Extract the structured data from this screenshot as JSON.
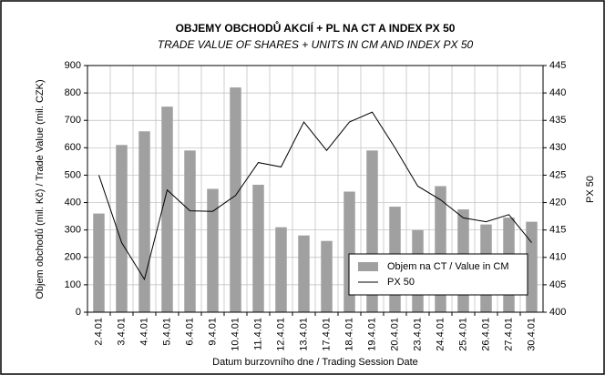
{
  "chart_data": {
    "type": "bar_line",
    "title": "OBJEMY OBCHODŮ AKCIÍ + PL NA CT A INDEX PX 50",
    "subtitle": "TRADE VALUE OF SHARES + UNITS IN CM AND INDEX PX 50",
    "x_label": "Datum burzovního dne / Trading Session Date",
    "y_label": "Objem obchodů (mil. Kč) / Trade Value (mil. CZK)",
    "y2_label": "PX 50",
    "categories": [
      "2.4.01",
      "3.4.01",
      "4.4.01",
      "5.4.01",
      "6.4.01",
      "9.4.01",
      "10.4.01",
      "11.4.01",
      "12.4.01",
      "13.4.01",
      "17.4.01",
      "18.4.01",
      "19.4.01",
      "20.4.01",
      "23.4.01",
      "24.4.01",
      "25.4.01",
      "26.4.01",
      "27.4.01",
      "30.4.01"
    ],
    "series": [
      {
        "name": "Objem na CT / Value in CM",
        "type": "bar",
        "color": "#a0a0a0",
        "values": [
          360,
          610,
          660,
          750,
          590,
          450,
          820,
          465,
          310,
          280,
          260,
          440,
          590,
          385,
          300,
          460,
          375,
          320,
          345,
          330
        ]
      },
      {
        "name": "PX 50",
        "type": "line",
        "axis": "y2",
        "color": "#000000",
        "values": [
          425,
          412.7,
          406,
          422.3,
          418.5,
          418.4,
          421.3,
          427.3,
          426.5,
          434.7,
          429.5,
          434.7,
          436.5,
          430,
          423,
          420.5,
          417.2,
          416.5,
          417.8,
          412.7
        ]
      }
    ],
    "ylim": [
      0,
      900
    ],
    "yticks": [
      0,
      100,
      200,
      300,
      400,
      500,
      600,
      700,
      800,
      900
    ],
    "y2lim": [
      400,
      445
    ],
    "y2ticks": [
      400,
      405,
      410,
      415,
      420,
      425,
      430,
      435,
      440,
      445
    ],
    "grid": true
  }
}
